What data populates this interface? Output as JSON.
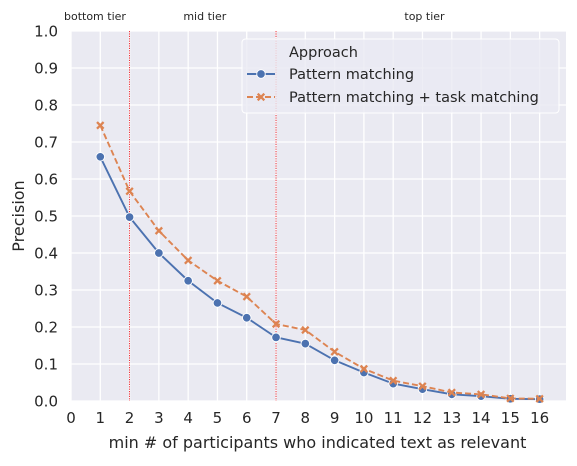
{
  "chart_data": {
    "type": "line",
    "xlabel": "min # of participants who indicated text as relevant",
    "ylabel": "Precision",
    "xlim": [
      0,
      16.9
    ],
    "ylim": [
      0,
      1.0
    ],
    "xticks": [
      0,
      1,
      2,
      3,
      4,
      5,
      6,
      7,
      8,
      9,
      10,
      11,
      12,
      13,
      14,
      15,
      16
    ],
    "yticks": [
      0.0,
      0.1,
      0.2,
      0.3,
      0.4,
      0.5,
      0.6,
      0.7,
      0.8,
      0.9,
      1.0
    ],
    "grid": true,
    "background": "#eaeaf2",
    "legend": {
      "title": "Approach",
      "placement": "top-right"
    },
    "series": [
      {
        "name": "Pattern matching",
        "color": "#4c72b0",
        "marker": "circle",
        "linestyle": "solid",
        "x": [
          1,
          2,
          3,
          4,
          5,
          6,
          7,
          8,
          9,
          10,
          11,
          12,
          13,
          14,
          15,
          16
        ],
        "values": [
          0.66,
          0.497,
          0.4,
          0.325,
          0.265,
          0.225,
          0.172,
          0.155,
          0.11,
          0.077,
          0.047,
          0.032,
          0.018,
          0.013,
          0.006,
          0.005
        ]
      },
      {
        "name": "Pattern matching + task matching",
        "color": "#dd8452",
        "marker": "x",
        "linestyle": "dashed",
        "x": [
          1,
          2,
          3,
          4,
          5,
          6,
          7,
          8,
          9,
          10,
          11,
          12,
          13,
          14,
          15,
          16
        ],
        "values": [
          0.745,
          0.567,
          0.46,
          0.38,
          0.325,
          0.282,
          0.208,
          0.192,
          0.133,
          0.087,
          0.055,
          0.04,
          0.023,
          0.018,
          0.007,
          0.006
        ]
      }
    ],
    "vlines": [
      {
        "x": 2,
        "color": "#e8000b"
      },
      {
        "x": 7,
        "color": "#e8000b"
      }
    ],
    "annotations": [
      {
        "text": "bottom tier",
        "x": 0.75
      },
      {
        "text": "mid tier",
        "x": 4.5
      },
      {
        "text": "top tier",
        "x": 12.0
      }
    ]
  }
}
